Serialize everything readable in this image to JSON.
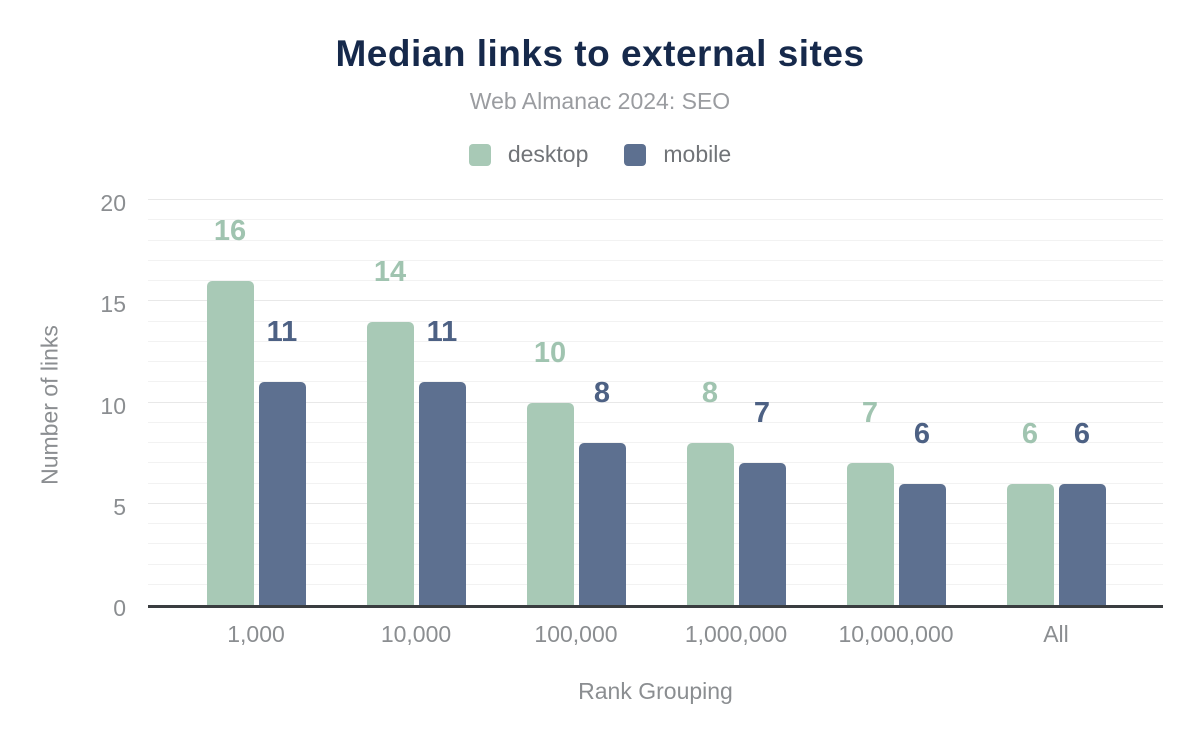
{
  "title": "Median links to external sites",
  "subtitle": "Web Almanac 2024: SEO",
  "chart_data": {
    "type": "bar",
    "title": "Median links to external sites",
    "subtitle": "Web Almanac 2024: SEO",
    "categories": [
      "1,000",
      "10,000",
      "100,000",
      "1,000,000",
      "10,000,000",
      "All"
    ],
    "series": [
      {
        "name": "desktop",
        "values": [
          16,
          14,
          10,
          8,
          7,
          6
        ],
        "color": "#a8c9b6",
        "label_color": "#a0c4b0"
      },
      {
        "name": "mobile",
        "values": [
          11,
          11,
          8,
          7,
          6,
          6
        ],
        "color": "#5d7090",
        "label_color": "#4d6184"
      }
    ],
    "xlabel": "Rank Grouping",
    "ylabel": "Number of links",
    "ylim": [
      0,
      20
    ],
    "yticks": [
      0,
      5,
      10,
      15,
      20
    ],
    "grid": "horizontal, minor every 1 unit, major every 5 units",
    "legend_position": "top center",
    "data_labels": "above bars"
  },
  "colors": {
    "title": "#16294b",
    "subtitle": "#9a9ca0",
    "axis_text": "#8b8e91",
    "legend_text": "#717478",
    "axis_line": "#3a3d40",
    "grid_minor": "#f2f2f2",
    "grid_major": "#e8e8e8",
    "desktop": "#a8c9b6",
    "mobile": "#5d7090"
  }
}
